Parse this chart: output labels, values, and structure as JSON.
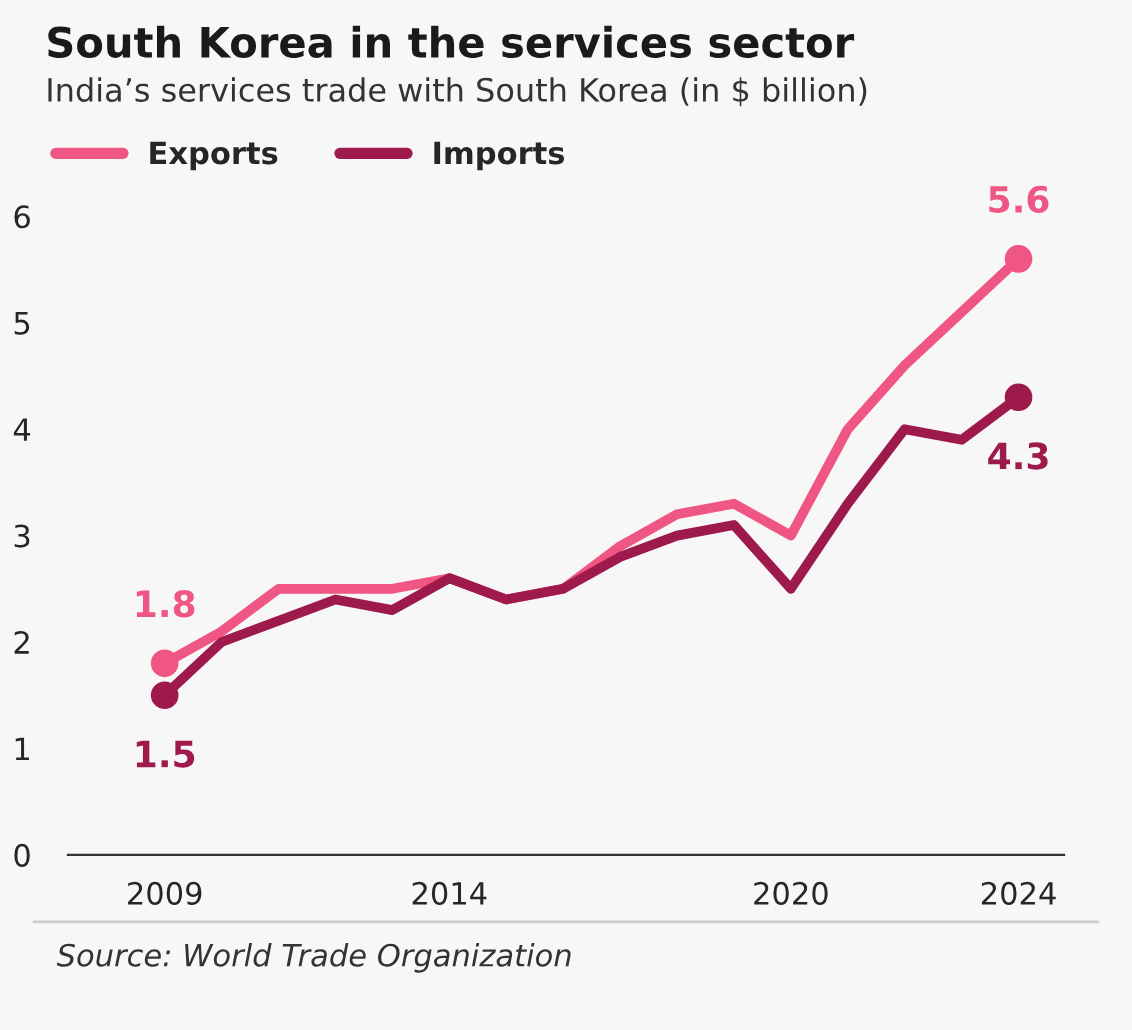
{
  "chart_data": {
    "type": "line",
    "title": "South Korea in the services sector",
    "subtitle": "India’s services trade with South Korea (in $ billion)",
    "x": [
      2009,
      2010,
      2011,
      2012,
      2013,
      2014,
      2015,
      2016,
      2017,
      2018,
      2019,
      2020,
      2021,
      2022,
      2023,
      2024
    ],
    "series": [
      {
        "name": "Exports",
        "color": "#ef5684",
        "values": [
          1.8,
          2.1,
          2.5,
          2.5,
          2.5,
          2.6,
          2.4,
          2.5,
          2.9,
          3.2,
          3.3,
          3.0,
          4.0,
          4.6,
          5.1,
          5.6
        ],
        "value_labels": [
          "1.8",
          null,
          null,
          null,
          null,
          null,
          null,
          null,
          null,
          null,
          null,
          null,
          null,
          null,
          null,
          "5.6"
        ]
      },
      {
        "name": "Imports",
        "color": "#9e1a4c",
        "values": [
          1.5,
          2.0,
          2.2,
          2.4,
          2.3,
          2.6,
          2.4,
          2.5,
          2.8,
          3.0,
          3.1,
          2.5,
          3.3,
          4.0,
          3.9,
          4.3
        ],
        "value_labels": [
          "1.5",
          null,
          null,
          null,
          null,
          null,
          null,
          null,
          null,
          null,
          null,
          null,
          null,
          null,
          null,
          "4.3"
        ]
      }
    ],
    "xlim": [
      2007.3,
      2024.8
    ],
    "xticks": [
      2009,
      2014,
      2020,
      2024
    ],
    "ylim": [
      0,
      6
    ],
    "yticks": [
      0,
      1,
      2,
      3,
      4,
      5,
      6
    ],
    "grid": false,
    "legend": "top left",
    "line_style": "solid",
    "annotations": [
      "Source: World Trade Organization"
    ]
  }
}
